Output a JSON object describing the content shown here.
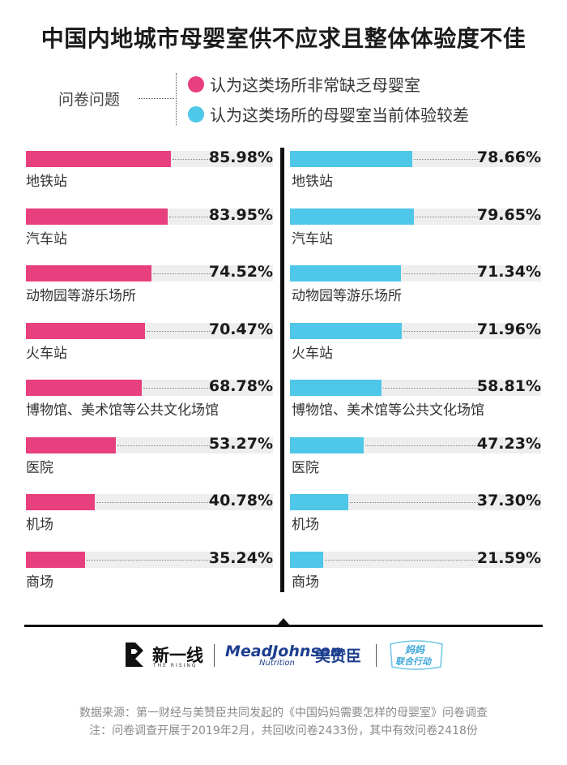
{
  "title": "中国内地城市母婴室供不应求且整体体验度不佳",
  "question_label": "问卷问题",
  "legend": [
    {
      "label": "认为这类场所非常缺乏母婴室",
      "color": "#e8407e"
    },
    {
      "label": "认为这类场所的母婴室当前体验较差",
      "color": "#4fc7e8"
    }
  ],
  "chart_data": {
    "type": "bar",
    "orientation": "horizontal",
    "categories": [
      "地铁站",
      "汽车站",
      "动物园等游乐场所",
      "火车站",
      "博物馆、美术馆等公共文化场馆",
      "医院",
      "机场",
      "商场"
    ],
    "series": [
      {
        "name": "认为这类场所非常缺乏母婴室",
        "color": "#e8407e",
        "values": [
          85.98,
          83.95,
          74.52,
          70.47,
          68.78,
          53.27,
          40.78,
          35.24
        ],
        "labels": [
          "85.98%",
          "83.95%",
          "74.52%",
          "70.47%",
          "68.78%",
          "53.27%",
          "40.78%",
          "35.24%"
        ]
      },
      {
        "name": "认为这类场所的母婴室当前体验较差",
        "color": "#4fc7e8",
        "values": [
          78.66,
          79.65,
          71.34,
          71.96,
          58.81,
          47.23,
          37.3,
          21.59
        ],
        "labels": [
          "78.66%",
          "79.65%",
          "71.34%",
          "71.96%",
          "58.81%",
          "47.23%",
          "37.30%",
          "21.59%"
        ]
      }
    ],
    "unit": "%",
    "xlim": [
      0,
      100
    ],
    "grid": false,
    "legend_position": "top-right"
  },
  "logos": {
    "xinyixian": "新一线",
    "xinyixian_sub": "THE RISING",
    "mead_johnson": "MeadJohnson",
    "mead_johnson_sub": "Nutrition",
    "meizanchen": "美赞臣",
    "mama_line1": "妈妈",
    "mama_line2": "联合行动"
  },
  "source": "数据来源：第一财经与美赞臣共同发起的《中国妈妈需要怎样的母婴室》问卷调查",
  "note": "注：问卷调查开展于2019年2月，共回收问卷2433份，其中有效问卷2418份"
}
